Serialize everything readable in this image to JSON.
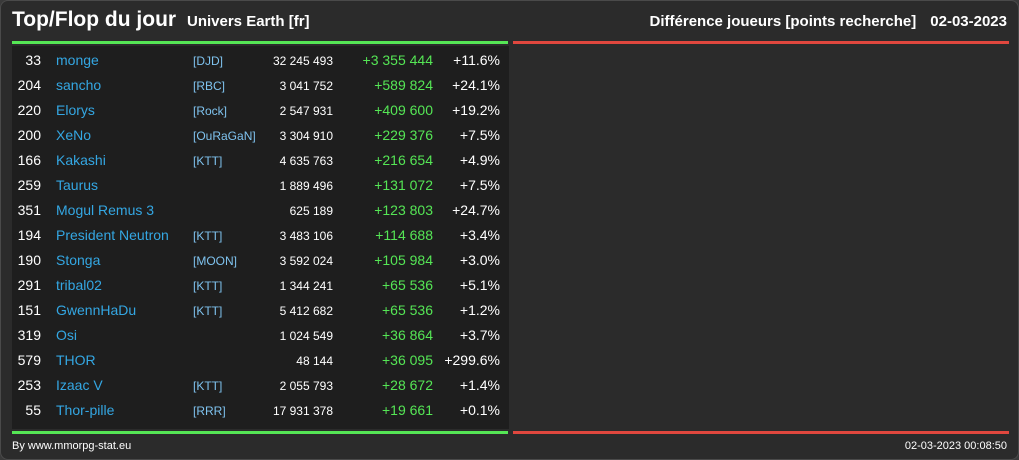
{
  "header": {
    "title": "Top/Flop du jour",
    "universe": "Univers Earth [fr]",
    "subtitle": "Différence joueurs [points recherche]",
    "date": "02-03-2023"
  },
  "colors": {
    "gain": "#55e655",
    "loss": "#e0473e",
    "player_link": "#34a7e3"
  },
  "top_rows": [
    {
      "rank": "33",
      "name": "monge",
      "alliance": "[DJD]",
      "points": "32 245 493",
      "diff": "+3 355 444",
      "pct": "+11.6%"
    },
    {
      "rank": "204",
      "name": "sancho",
      "alliance": "[RBC]",
      "points": "3 041 752",
      "diff": "+589 824",
      "pct": "+24.1%"
    },
    {
      "rank": "220",
      "name": "Elorys",
      "alliance": "[Rock]",
      "points": "2 547 931",
      "diff": "+409 600",
      "pct": "+19.2%"
    },
    {
      "rank": "200",
      "name": "XeNo",
      "alliance": "[OuRaGaN]",
      "points": "3 304 910",
      "diff": "+229 376",
      "pct": "+7.5%"
    },
    {
      "rank": "166",
      "name": "Kakashi",
      "alliance": "[KTT]",
      "points": "4 635 763",
      "diff": "+216 654",
      "pct": "+4.9%"
    },
    {
      "rank": "259",
      "name": "Taurus",
      "alliance": "",
      "points": "1 889 496",
      "diff": "+131 072",
      "pct": "+7.5%"
    },
    {
      "rank": "351",
      "name": "Mogul Remus 3",
      "alliance": "",
      "points": "625 189",
      "diff": "+123 803",
      "pct": "+24.7%"
    },
    {
      "rank": "194",
      "name": "President Neutron",
      "alliance": "[KTT]",
      "points": "3 483 106",
      "diff": "+114 688",
      "pct": "+3.4%"
    },
    {
      "rank": "190",
      "name": "Stonga",
      "alliance": "[MOON]",
      "points": "3 592 024",
      "diff": "+105 984",
      "pct": "+3.0%"
    },
    {
      "rank": "291",
      "name": "tribal02",
      "alliance": "[KTT]",
      "points": "1 344 241",
      "diff": "+65 536",
      "pct": "+5.1%"
    },
    {
      "rank": "151",
      "name": "GwennHaDu",
      "alliance": "[KTT]",
      "points": "5 412 682",
      "diff": "+65 536",
      "pct": "+1.2%"
    },
    {
      "rank": "319",
      "name": "Osi",
      "alliance": "",
      "points": "1 024 549",
      "diff": "+36 864",
      "pct": "+3.7%"
    },
    {
      "rank": "579",
      "name": "THOR",
      "alliance": "",
      "points": "48 144",
      "diff": "+36 095",
      "pct": "+299.6%"
    },
    {
      "rank": "253",
      "name": "Izaac V",
      "alliance": "[KTT]",
      "points": "2 055 793",
      "diff": "+28 672",
      "pct": "+1.4%"
    },
    {
      "rank": "55",
      "name": "Thor-pille",
      "alliance": "[RRR]",
      "points": "17 931 378",
      "diff": "+19 661",
      "pct": "+0.1%"
    }
  ],
  "flop_rows": [],
  "footer": {
    "source": "By www.mmorpg-stat.eu",
    "timestamp": "02-03-2023 00:08:50"
  }
}
